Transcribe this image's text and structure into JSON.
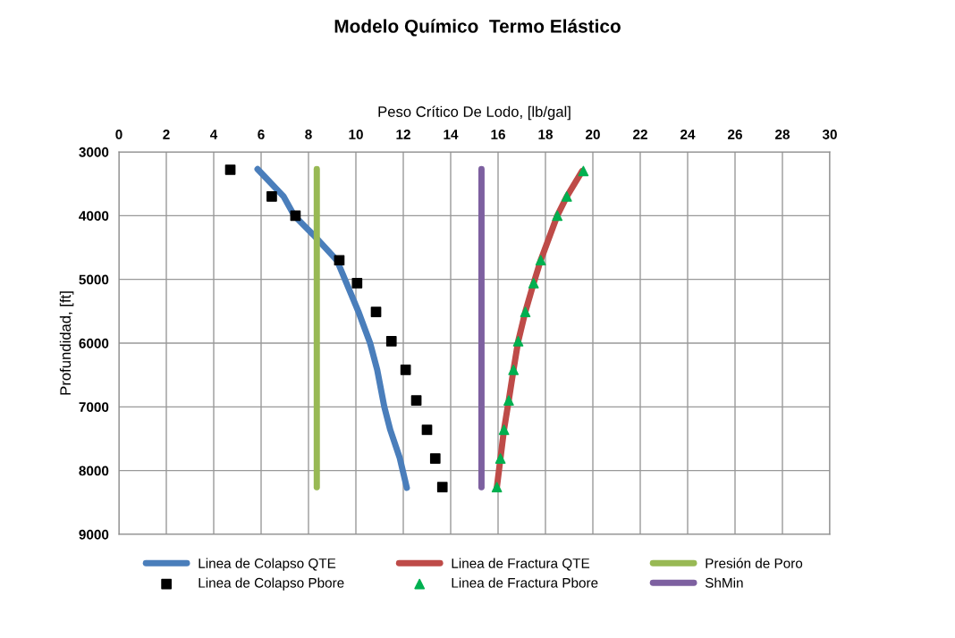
{
  "chart_data": {
    "type": "line",
    "title": "Modelo Químico  Termo Elástico",
    "xlabel": "Peso Crítico De Lodo, [lb/gal]",
    "ylabel": "Profundidad, [ft]",
    "xlim": [
      0,
      30
    ],
    "xticks": [
      0,
      2,
      4,
      6,
      8,
      10,
      12,
      14,
      16,
      18,
      20,
      22,
      24,
      26,
      28,
      30
    ],
    "ylim": [
      9000,
      3000
    ],
    "yticks": [
      3000,
      4000,
      5000,
      6000,
      7000,
      8000,
      9000
    ],
    "grid": true,
    "legend": "bottom",
    "series": [
      {
        "name": "Linea de Colapso QTE",
        "color": "#4a7ebb",
        "x": [
          5.85,
          6.95,
          7.4,
          8.2,
          9.2,
          10.1,
          10.6,
          10.9,
          11.2,
          11.45,
          11.85,
          12.15
        ],
        "values": [
          3270,
          3700,
          4000,
          4300,
          4700,
          5500,
          6000,
          6420,
          7000,
          7360,
          7800,
          8270
        ]
      },
      {
        "name": "Linea de Fractura QTE",
        "color": "#be4b48",
        "x": [
          19.55,
          18.9,
          18.5,
          17.8,
          17.5,
          17.15,
          16.85,
          16.65,
          16.45,
          16.25,
          16.1,
          15.95
        ],
        "values": [
          3300,
          3700,
          4000,
          4700,
          5060,
          5510,
          5970,
          6420,
          6900,
          7360,
          7810,
          8260
        ]
      },
      {
        "name": "Presión de Poro",
        "color": "#98b954",
        "x": [
          8.35,
          8.35
        ],
        "values": [
          3270,
          8260
        ]
      },
      {
        "name": "Linea de Colapso Pbore",
        "type": "scatter",
        "marker": "square",
        "color": "#000000",
        "x": [
          4.7,
          6.45,
          7.45,
          9.3,
          10.05,
          10.85,
          11.5,
          12.1,
          12.55,
          13.0,
          13.35,
          13.65
        ],
        "values": [
          3280,
          3700,
          4000,
          4700,
          5060,
          5510,
          5970,
          6420,
          6900,
          7360,
          7810,
          8260
        ]
      },
      {
        "name": "Linea de Fractura Pbore",
        "type": "scatter",
        "marker": "triangle",
        "color": "#00b050",
        "x": [
          19.6,
          18.9,
          18.5,
          17.8,
          17.5,
          17.15,
          16.85,
          16.65,
          16.45,
          16.25,
          16.1,
          15.95
        ],
        "values": [
          3300,
          3700,
          4000,
          4700,
          5060,
          5510,
          5970,
          6420,
          6900,
          7360,
          7810,
          8260
        ]
      },
      {
        "name": "ShMin",
        "color": "#7d60a0",
        "x": [
          15.3,
          15.3
        ],
        "values": [
          3270,
          8260
        ]
      }
    ]
  }
}
